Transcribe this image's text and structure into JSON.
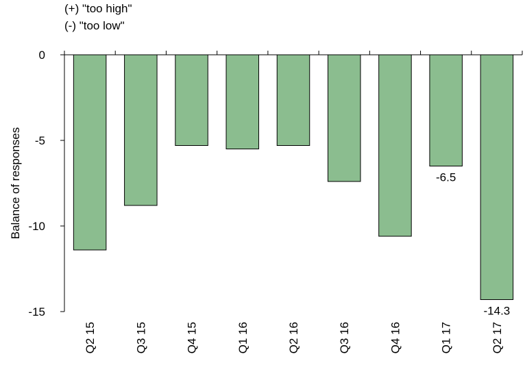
{
  "legend": {
    "positive": "(+) \"too high\"",
    "negative": "(-) \"too low\""
  },
  "chart_data": {
    "type": "bar",
    "title": "",
    "xlabel": "",
    "ylabel": "Balance of responses",
    "categories": [
      "Q2 15",
      "Q3 15",
      "Q4 15",
      "Q1 16",
      "Q2 16",
      "Q3 16",
      "Q4 16",
      "Q1 17",
      "Q2 17"
    ],
    "values": [
      -11.4,
      -8.8,
      -5.3,
      -5.5,
      -5.3,
      -7.4,
      -10.6,
      -6.5,
      -14.3
    ],
    "data_labels": [
      "",
      "",
      "",
      "",
      "",
      "",
      "",
      "-6.5",
      "-14.3"
    ],
    "yticks": [
      0,
      -5,
      -10,
      -15
    ],
    "ylim": [
      -15,
      0
    ],
    "grid": false,
    "bar_color": "#8bbd8f",
    "bar_edge_color": "#000000"
  }
}
